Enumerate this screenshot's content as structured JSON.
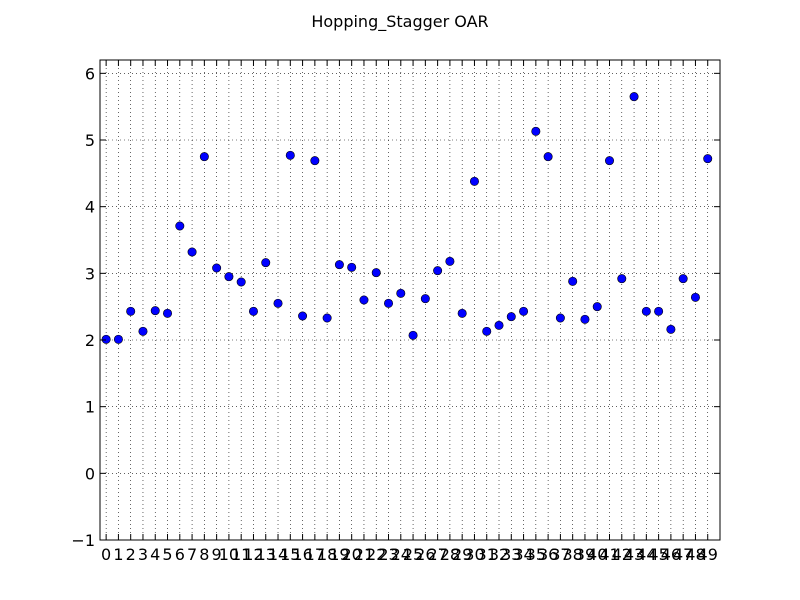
{
  "chart_data": {
    "type": "scatter",
    "title": "Hopping_Stagger OAR",
    "xlabel": "",
    "ylabel": "",
    "x": [
      0,
      1,
      2,
      3,
      4,
      5,
      6,
      7,
      8,
      9,
      10,
      11,
      12,
      13,
      14,
      15,
      16,
      17,
      18,
      19,
      20,
      21,
      22,
      23,
      24,
      25,
      26,
      27,
      28,
      29,
      30,
      31,
      32,
      33,
      34,
      35,
      36,
      37,
      38,
      39,
      40,
      41,
      42,
      43,
      44,
      45,
      46,
      47,
      48,
      49
    ],
    "y": [
      2.01,
      2.01,
      2.43,
      2.13,
      2.44,
      2.4,
      3.71,
      3.32,
      4.75,
      3.08,
      2.95,
      2.87,
      2.43,
      3.16,
      2.55,
      4.77,
      2.36,
      4.69,
      2.33,
      3.13,
      3.09,
      2.6,
      3.01,
      2.55,
      2.7,
      2.07,
      2.62,
      3.04,
      3.18,
      2.4,
      4.38,
      2.13,
      2.22,
      2.35,
      2.43,
      5.13,
      4.75,
      2.33,
      2.88,
      2.31,
      2.5,
      4.69,
      2.92,
      5.65,
      2.43,
      2.43,
      2.16,
      2.92,
      2.64,
      4.72
    ],
    "xlim": [
      -0.5,
      50
    ],
    "ylim": [
      -1,
      6.2
    ],
    "yticks": [
      -1,
      0,
      1,
      2,
      3,
      4,
      5,
      6
    ],
    "xticks": [
      0,
      1,
      2,
      3,
      4,
      5,
      6,
      7,
      8,
      9,
      10,
      11,
      12,
      13,
      14,
      15,
      16,
      17,
      18,
      19,
      20,
      21,
      22,
      23,
      24,
      25,
      26,
      27,
      28,
      29,
      30,
      31,
      32,
      33,
      34,
      35,
      36,
      37,
      38,
      39,
      40,
      41,
      42,
      43,
      44,
      45,
      46,
      47,
      48,
      49
    ],
    "grid": true,
    "marker_color": "#0000ff",
    "marker_edge_color": "#000000"
  }
}
